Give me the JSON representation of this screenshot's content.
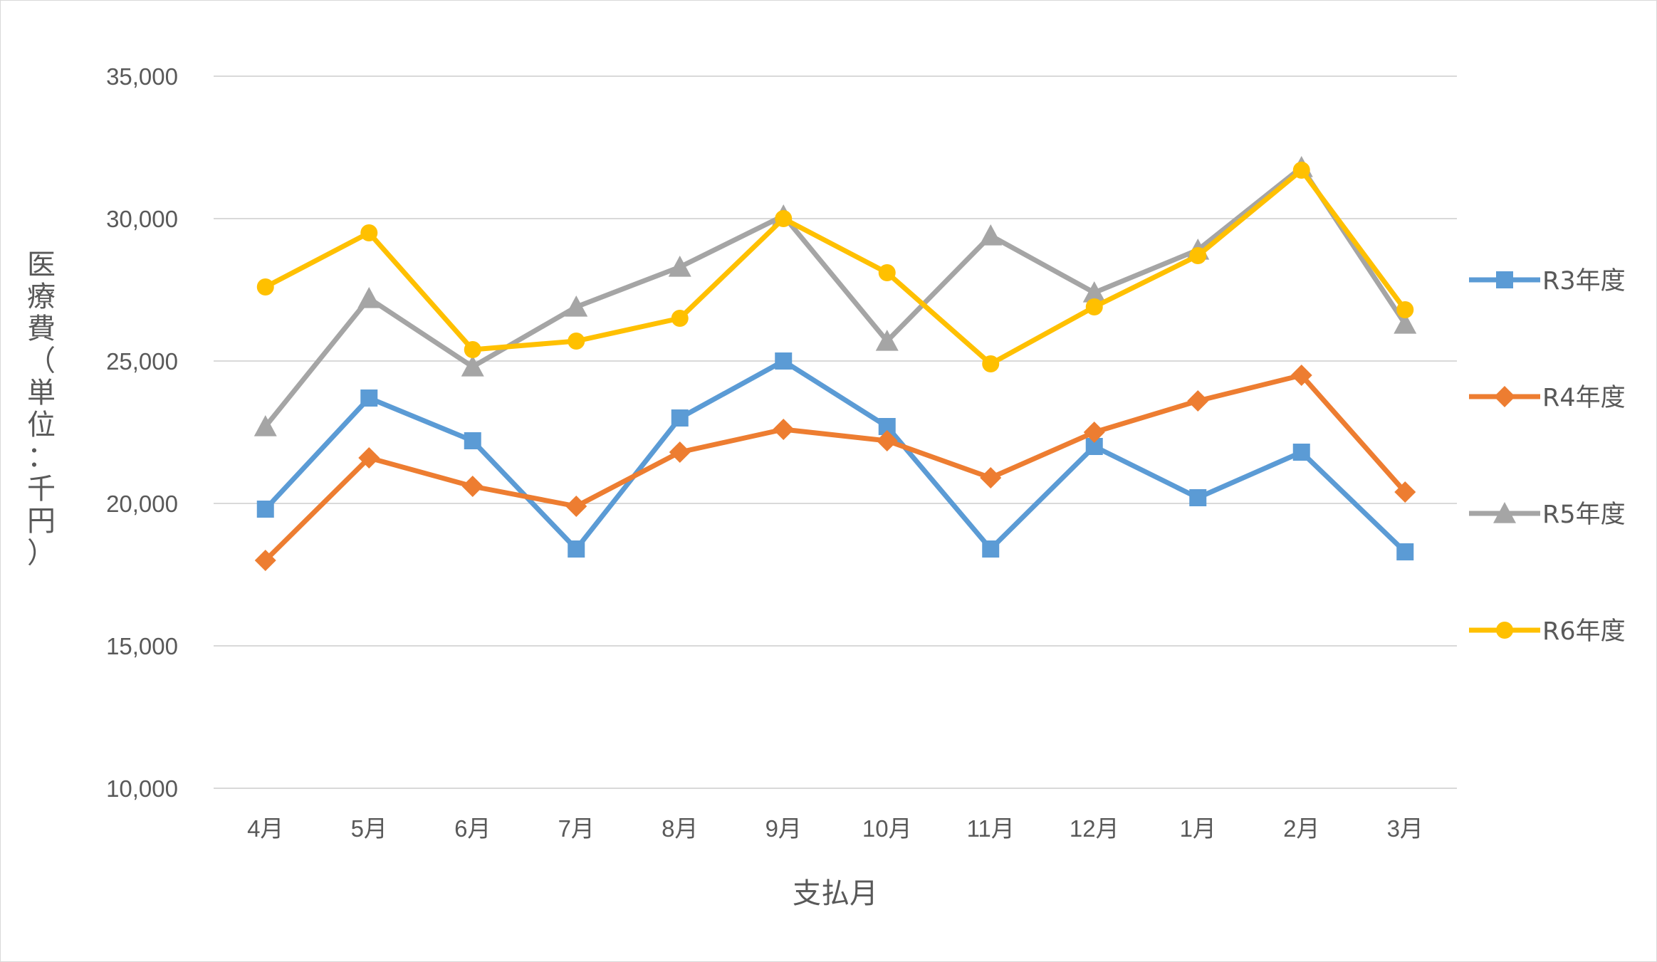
{
  "chart_data": {
    "type": "line",
    "title": "",
    "xlabel": "支払月",
    "ylabel": "医療費（単位：千円）",
    "ylim": [
      10000,
      35000
    ],
    "yticks": [
      10000,
      15000,
      20000,
      25000,
      30000,
      35000
    ],
    "ytick_labels": [
      "10,000",
      "15,000",
      "20,000",
      "25,000",
      "30,000",
      "35,000"
    ],
    "categories": [
      "4月",
      "5月",
      "6月",
      "7月",
      "8月",
      "9月",
      "10月",
      "11月",
      "12月",
      "1月",
      "2月",
      "3月"
    ],
    "grid": "horizontal",
    "legend_position": "right",
    "series": [
      {
        "name": "R3年度",
        "color": "#5b9bd5",
        "marker": "square",
        "values": [
          19800,
          23700,
          22200,
          18400,
          23000,
          25000,
          22700,
          18400,
          22000,
          20200,
          21800,
          18300
        ]
      },
      {
        "name": "R4年度",
        "color": "#ed7d31",
        "marker": "diamond",
        "values": [
          18000,
          21600,
          20600,
          19900,
          21800,
          22600,
          22200,
          20900,
          22500,
          23600,
          24500,
          20400
        ]
      },
      {
        "name": "R5年度",
        "color": "#a5a5a5",
        "marker": "triangle",
        "values": [
          22700,
          27200,
          24800,
          26900,
          28300,
          30100,
          25700,
          29400,
          27400,
          28900,
          31800,
          26300
        ]
      },
      {
        "name": "R6年度",
        "color": "#ffc000",
        "marker": "circle",
        "values": [
          27600,
          29500,
          25400,
          25700,
          26500,
          30000,
          28100,
          24900,
          26900,
          28700,
          31700,
          26800
        ]
      }
    ]
  }
}
